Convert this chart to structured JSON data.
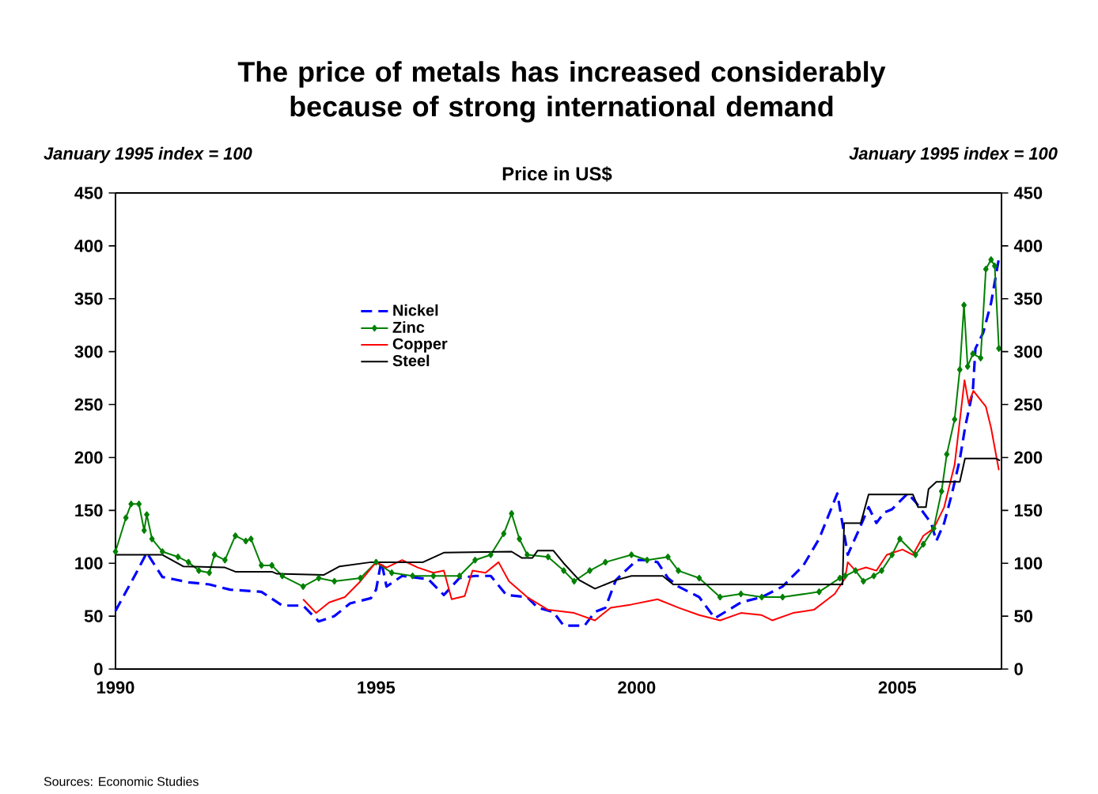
{
  "chart_data": {
    "type": "line",
    "title": "The price of metals has increased considerably because of strong international demand",
    "subtitle": "Price in US$",
    "ylabel": "January 1995 index = 100",
    "y2label": "January 1995 index = 100",
    "annotations": [
      "Sources: Economic Studies"
    ],
    "xlim": [
      1990,
      2007
    ],
    "xticks": [
      1990,
      1995,
      2000,
      2005
    ],
    "ylim": [
      0,
      450
    ],
    "yticks": [
      0,
      50,
      100,
      150,
      200,
      250,
      300,
      350,
      400,
      450
    ],
    "y2lim": [
      0,
      450
    ],
    "y2ticks": [
      0,
      50,
      100,
      150,
      200,
      250,
      300,
      350,
      400,
      450
    ],
    "grid": false,
    "legend": "top left",
    "series": [
      {
        "name": "Nickel",
        "color": "#0000ff",
        "line_style": "dashed",
        "marker": "none",
        "x": [
          1990.0,
          1990.2,
          1990.4,
          1990.6,
          1990.9,
          1991.1,
          1991.4,
          1991.8,
          1992.2,
          1992.8,
          1993.2,
          1993.6,
          1993.9,
          1994.2,
          1994.5,
          1994.9,
          1995.0,
          1995.1,
          1995.2,
          1995.5,
          1996.0,
          1996.3,
          1996.6,
          1996.9,
          1997.2,
          1997.5,
          1997.9,
          1998.1,
          1998.4,
          1998.6,
          1999.0,
          1999.2,
          1999.4,
          1999.6,
          2000.0,
          2000.2,
          2000.4,
          2000.6,
          2000.8,
          2001.2,
          2001.5,
          2001.7,
          2002.0,
          2002.4,
          2002.8,
          2003.2,
          2003.5,
          2003.85,
          2004.05,
          2004.25,
          2004.45,
          2004.6,
          2004.75,
          2004.9,
          2005.2,
          2005.35,
          2005.65,
          2005.75,
          2005.9,
          2006.05,
          2006.2,
          2006.3,
          2006.45,
          2006.5,
          2006.65,
          2006.8,
          2006.95
        ],
        "values": [
          55,
          73,
          91,
          110,
          87,
          85,
          82,
          80,
          75,
          73,
          60,
          60,
          45,
          50,
          62,
          67,
          75,
          102,
          78,
          88,
          85,
          70,
          86,
          88,
          88,
          70,
          68,
          58,
          54,
          41,
          41,
          54,
          58,
          84,
          103,
          103,
          101,
          86,
          78,
          68,
          48,
          54,
          63,
          68,
          78,
          98,
          123,
          166,
          108,
          130,
          153,
          138,
          148,
          151,
          166,
          158,
          138,
          121,
          138,
          166,
          198,
          228,
          263,
          303,
          318,
          346,
          388
        ]
      },
      {
        "name": "Zinc",
        "color": "#008000",
        "line_style": "solid",
        "marker": "diamond",
        "x": [
          1990.0,
          1990.2,
          1990.3,
          1990.45,
          1990.55,
          1990.6,
          1990.7,
          1990.9,
          1991.2,
          1991.4,
          1991.6,
          1991.8,
          1991.9,
          1992.1,
          1992.3,
          1992.5,
          1992.6,
          1992.8,
          1993.0,
          1993.2,
          1993.6,
          1993.9,
          1994.2,
          1994.7,
          1995.0,
          1995.3,
          1995.7,
          1996.1,
          1996.6,
          1996.9,
          1997.2,
          1997.45,
          1997.6,
          1997.75,
          1997.9,
          1998.3,
          1998.6,
          1998.8,
          1999.1,
          1999.4,
          1999.9,
          2000.2,
          2000.6,
          2000.8,
          2001.2,
          2001.6,
          2002.0,
          2002.4,
          2002.8,
          2003.5,
          2003.9,
          2004.0,
          2004.2,
          2004.35,
          2004.55,
          2004.7,
          2004.9,
          2005.05,
          2005.35,
          2005.5,
          2005.7,
          2005.85,
          2005.95,
          2006.1,
          2006.2,
          2006.28,
          2006.35,
          2006.45,
          2006.6,
          2006.7,
          2006.8,
          2006.87,
          2006.95
        ],
        "values": [
          111,
          143,
          156,
          156,
          131,
          146,
          123,
          111,
          106,
          101,
          93,
          91,
          108,
          103,
          126,
          121,
          123,
          98,
          98,
          88,
          78,
          86,
          83,
          86,
          101,
          91,
          88,
          88,
          88,
          103,
          108,
          128,
          147,
          123,
          108,
          106,
          93,
          83,
          93,
          101,
          108,
          103,
          106,
          93,
          86,
          68,
          71,
          68,
          68,
          73,
          86,
          88,
          93,
          83,
          88,
          93,
          108,
          123,
          108,
          118,
          133,
          168,
          203,
          236,
          283,
          344,
          286,
          298,
          294,
          378,
          387,
          381,
          303
        ]
      },
      {
        "name": "Copper",
        "color": "#ff0000",
        "line_style": "solid",
        "marker": "none",
        "x": [
          1993.6,
          1993.85,
          1994.1,
          1994.4,
          1994.7,
          1995.0,
          1995.2,
          1995.5,
          1995.8,
          1996.1,
          1996.3,
          1996.45,
          1996.7,
          1996.85,
          1997.1,
          1997.35,
          1997.55,
          1997.9,
          1998.3,
          1998.8,
          1999.2,
          1999.5,
          1999.9,
          2000.4,
          2000.8,
          2001.2,
          2001.6,
          2002.0,
          2002.4,
          2002.6,
          2003.0,
          2003.4,
          2003.8,
          2004.0,
          2004.05,
          2004.2,
          2004.4,
          2004.6,
          2004.8,
          2005.1,
          2005.3,
          2005.5,
          2005.7,
          2005.9,
          2006.1,
          2006.22,
          2006.29,
          2006.37,
          2006.46,
          2006.7,
          2006.8,
          2006.95
        ],
        "values": [
          66,
          53,
          63,
          68,
          83,
          101,
          96,
          103,
          96,
          91,
          93,
          66,
          69,
          93,
          91,
          101,
          83,
          68,
          56,
          53,
          46,
          58,
          61,
          66,
          58,
          51,
          46,
          53,
          51,
          46,
          53,
          56,
          71,
          86,
          101,
          93,
          96,
          93,
          108,
          113,
          108,
          126,
          133,
          153,
          193,
          243,
          273,
          251,
          263,
          248,
          228,
          188
        ]
      },
      {
        "name": "Steel",
        "color": "#000000",
        "line_style": "solid",
        "marker": "none",
        "x": [
          1990.0,
          1990.9,
          1991.3,
          1992.1,
          1992.3,
          1993.0,
          1993.1,
          1994.0,
          1994.3,
          1994.9,
          1995.9,
          1996.3,
          1997.6,
          1997.8,
          1998.0,
          1998.1,
          1998.4,
          1998.6,
          1998.9,
          1999.2,
          1999.6,
          1999.9,
          2000.5,
          2000.7,
          2003.95,
          2003.98,
          2004.3,
          2004.45,
          2005.3,
          2005.4,
          2005.55,
          2005.6,
          2005.75,
          2006.2,
          2006.3,
          2006.9,
          2006.97
        ],
        "values": [
          108,
          108,
          97,
          96,
          92,
          92,
          90,
          89,
          97,
          101,
          101,
          110,
          111,
          105,
          105,
          112,
          112,
          100,
          84,
          76,
          84,
          88,
          88,
          80,
          80,
          138,
          138,
          165,
          165,
          153,
          153,
          170,
          177,
          177,
          199,
          199,
          197
        ]
      }
    ]
  }
}
